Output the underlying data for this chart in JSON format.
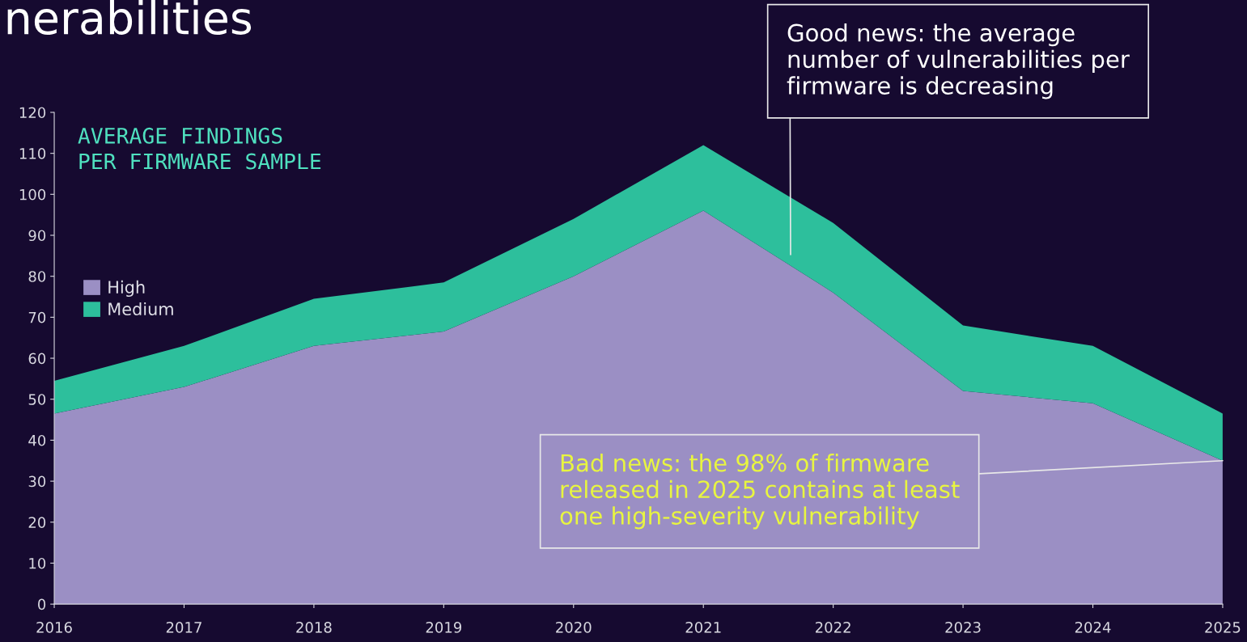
{
  "chart_data": {
    "type": "area",
    "stacked": true,
    "title": "nerabilities",
    "subtitle": "AVERAGE FINDINGS\nPER FIRMWARE SAMPLE",
    "x": [
      2016,
      2017,
      2018,
      2019,
      2020,
      2021,
      2022,
      2023,
      2024,
      2025
    ],
    "series": [
      {
        "name": "High",
        "color": "#9b8fc4",
        "values": [
          46.5,
          53,
          63,
          66.5,
          80,
          96,
          76,
          52,
          49,
          35
        ]
      },
      {
        "name": "Medium",
        "color": "#2dbf9c",
        "values": [
          8,
          10,
          11.5,
          12,
          14,
          16,
          17,
          16,
          14,
          11.5
        ]
      }
    ],
    "xlim": [
      2016,
      2025
    ],
    "xticks": [
      2016,
      2017,
      2018,
      2019,
      2020,
      2021,
      2022,
      2023,
      2024,
      2025
    ],
    "ylim": [
      0,
      120
    ],
    "yticks": [
      0,
      10,
      20,
      30,
      40,
      50,
      60,
      70,
      80,
      90,
      100,
      110,
      120
    ],
    "grid": false,
    "legend": "top left",
    "annotations": [
      "Good news: the average\nnumber of vulnerabilities per\nfirmware is decreasing",
      {
        "text": "Bad news: the 98% of firmware\nreleased in 2025 contains at least\none high-severity vulnerability",
        "x": 2025,
        "y": 35
      }
    ]
  }
}
